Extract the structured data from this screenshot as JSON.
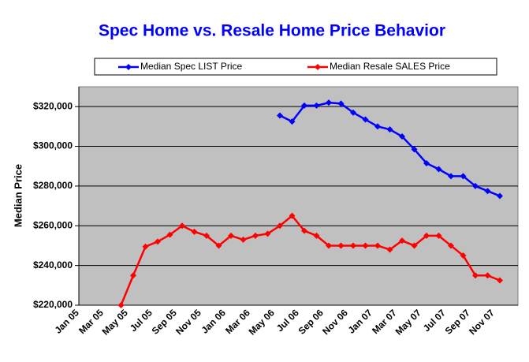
{
  "chart_data": {
    "type": "line",
    "title": "Spec Home vs. Resale Home Price Behavior",
    "y_label": "Median Price",
    "categories": [
      "Jan 05",
      null,
      "Mar 05",
      null,
      "May 05",
      null,
      "Jul 05",
      null,
      "Sep 05",
      null,
      "Nov 05",
      null,
      "Jan 06",
      null,
      "Mar 06",
      null,
      "May 06",
      null,
      "Jul 06",
      null,
      "Sep 06",
      null,
      "Nov 06",
      null,
      "Jan 07",
      null,
      "Mar 07",
      null,
      "May 07",
      null,
      "Jul 07",
      null,
      "Sep 07",
      null,
      "Nov 07",
      null
    ],
    "series": [
      {
        "name": "Median Spec LIST Price",
        "color": "#0000ff",
        "values": [
          null,
          null,
          null,
          null,
          null,
          null,
          null,
          null,
          null,
          null,
          null,
          null,
          null,
          null,
          null,
          null,
          null,
          315500,
          312500,
          320500,
          320500,
          322000,
          321500,
          317000,
          313500,
          310000,
          308500,
          305000,
          298500,
          291500,
          288500,
          285000,
          285000,
          280000,
          277500,
          275000
        ]
      },
      {
        "name": "Median Resale SALES Price",
        "color": "#ff0000",
        "values": [
          null,
          null,
          null,
          null,
          220000,
          235000,
          249500,
          252000,
          255500,
          260000,
          257000,
          255000,
          250000,
          255000,
          253000,
          255000,
          256000,
          260000,
          265000,
          257500,
          255000,
          250000,
          250000,
          250000,
          250000,
          250000,
          248000,
          252500,
          250000,
          255000,
          255000,
          250000,
          245000,
          235000,
          235000,
          232500
        ]
      }
    ],
    "ylim": [
      220000,
      330000
    ],
    "yticks": [
      {
        "value": 220000,
        "label": "$220,000"
      },
      {
        "value": 240000,
        "label": "$240,000"
      },
      {
        "value": 260000,
        "label": "$260,000"
      },
      {
        "value": 280000,
        "label": "$280,000"
      },
      {
        "value": 300000,
        "label": "$300,000"
      },
      {
        "value": 320000,
        "label": "$320,000"
      }
    ],
    "grid": true,
    "legend": "top"
  }
}
